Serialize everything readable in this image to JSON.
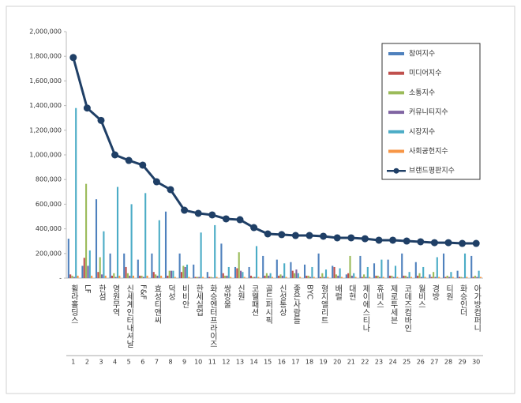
{
  "chart_data": {
    "type": "bar-line",
    "categories": [
      "휠라홀딩스",
      "LF",
      "한섬",
      "영원무역",
      "신세계인터내셔날",
      "F&F",
      "효성티앤씨",
      "덕성",
      "비비안",
      "한세실업",
      "화승엔터프라이즈",
      "쌍방울",
      "신원",
      "코웰패션",
      "골드퍼시픽",
      "신성통상",
      "좋은사람들",
      "BYC",
      "형지엘리트",
      "배럴",
      "대현",
      "제이에스티나",
      "휴비스",
      "제로투세븐",
      "코데즈컴바인",
      "월비스",
      "경방",
      "티원",
      "화승인더",
      "아가방컴퍼니"
    ],
    "category_numbers": [
      1,
      2,
      3,
      4,
      5,
      6,
      7,
      8,
      9,
      10,
      11,
      12,
      13,
      14,
      15,
      16,
      17,
      18,
      19,
      20,
      21,
      22,
      23,
      24,
      25,
      26,
      27,
      28,
      29,
      30
    ],
    "series": [
      {
        "name": "참여지수",
        "color": "#4f81bd",
        "values": [
          320000,
          100000,
          640000,
          200000,
          200000,
          150000,
          200000,
          540000,
          200000,
          110000,
          50000,
          280000,
          90000,
          90000,
          180000,
          150000,
          130000,
          110000,
          200000,
          100000,
          30000,
          180000,
          120000,
          150000,
          200000,
          130000,
          30000,
          200000,
          60000,
          180000
        ]
      },
      {
        "name": "미디어지수",
        "color": "#c0504d",
        "values": [
          30000,
          165000,
          50000,
          20000,
          90000,
          20000,
          50000,
          20000,
          50000,
          10000,
          10000,
          40000,
          80000,
          20000,
          20000,
          20000,
          60000,
          20000,
          10000,
          90000,
          40000,
          10000,
          20000,
          20000,
          20000,
          20000,
          10000,
          10000,
          10000,
          10000
        ]
      },
      {
        "name": "소통지수",
        "color": "#9bbb59",
        "values": [
          20000,
          765000,
          170000,
          40000,
          40000,
          20000,
          30000,
          60000,
          100000,
          10000,
          10000,
          20000,
          210000,
          10000,
          40000,
          30000,
          40000,
          20000,
          40000,
          30000,
          180000,
          30000,
          20000,
          20000,
          20000,
          40000,
          50000,
          20000,
          10000,
          20000
        ]
      },
      {
        "name": "커뮤니티지수",
        "color": "#8064a2",
        "values": [
          10000,
          100000,
          30000,
          10000,
          20000,
          10000,
          20000,
          60000,
          90000,
          10000,
          5000,
          20000,
          60000,
          10000,
          20000,
          20000,
          70000,
          10000,
          10000,
          20000,
          20000,
          10000,
          10000,
          10000,
          10000,
          10000,
          10000,
          10000,
          5000,
          10000
        ]
      },
      {
        "name": "시장지수",
        "color": "#4bacc6",
        "values": [
          1380000,
          225000,
          380000,
          740000,
          600000,
          690000,
          470000,
          60000,
          110000,
          370000,
          430000,
          90000,
          50000,
          260000,
          40000,
          120000,
          40000,
          90000,
          70000,
          80000,
          40000,
          90000,
          150000,
          100000,
          50000,
          90000,
          170000,
          50000,
          200000,
          60000
        ]
      },
      {
        "name": "사회공헌지수",
        "color": "#f79646",
        "values": [
          20000,
          20000,
          20000,
          20000,
          20000,
          20000,
          20000,
          10000,
          10000,
          10000,
          10000,
          10000,
          10000,
          10000,
          10000,
          10000,
          10000,
          10000,
          10000,
          10000,
          10000,
          10000,
          10000,
          10000,
          10000,
          10000,
          10000,
          10000,
          10000,
          10000
        ]
      },
      {
        "name": "브랜드평판지수",
        "color": "#1f3f66",
        "type": "line",
        "values": [
          1790000,
          1380000,
          1280000,
          1000000,
          955000,
          917000,
          782000,
          718000,
          551000,
          526000,
          513000,
          481000,
          474000,
          410000,
          359000,
          353000,
          346000,
          346000,
          340000,
          327000,
          327000,
          320000,
          308000,
          308000,
          301000,
          295000,
          288000,
          288000,
          282000,
          282000
        ]
      }
    ],
    "ylim": [
      0,
      2000000
    ],
    "yticks": [
      {
        "value": 0,
        "label": "-"
      },
      {
        "value": 200000,
        "label": "200,000"
      },
      {
        "value": 400000,
        "label": "400,000"
      },
      {
        "value": 600000,
        "label": "600,000"
      },
      {
        "value": 800000,
        "label": "800,000"
      },
      {
        "value": 1000000,
        "label": "1,000,000"
      },
      {
        "value": 1200000,
        "label": "1,200,000"
      },
      {
        "value": 1400000,
        "label": "1,400,000"
      },
      {
        "value": 1600000,
        "label": "1,600,000"
      },
      {
        "value": 1800000,
        "label": "1,800,000"
      },
      {
        "value": 2000000,
        "label": "2,000,000"
      }
    ],
    "grid": false,
    "legend": "top-right"
  }
}
